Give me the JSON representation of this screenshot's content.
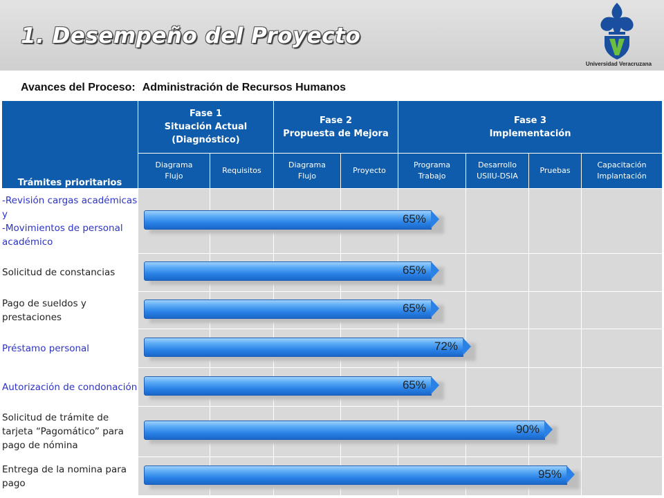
{
  "header": {
    "title": "1. Desempeño del Proyecto",
    "logo_caption": "Universidad Veracruzana"
  },
  "subtitle": {
    "label": "Avances del Proceso:",
    "value": "Administración de Recursos Humanos"
  },
  "table": {
    "first_header": "Trámites prioritarios",
    "phases": [
      {
        "lines": [
          "Fase 1",
          "Situación Actual",
          "(Diagnóstico)"
        ]
      },
      {
        "lines": [
          "Fase 2",
          "Propuesta de Mejora"
        ]
      },
      {
        "lines": [
          "Fase 3",
          "Implementación"
        ]
      }
    ],
    "subcolumns": [
      [
        "Diagrama",
        "Flujo"
      ],
      [
        "Requisitos"
      ],
      [
        "Diagrama",
        "Flujo"
      ],
      [
        "Proyecto"
      ],
      [
        "Programa",
        "Trabajo"
      ],
      [
        "Desarrollo",
        "USIIU-DSIA"
      ],
      [
        "Pruebas"
      ],
      [
        "Capacitación",
        "Implantación"
      ]
    ],
    "rows": [
      {
        "label": "-Revisión cargas académicas y\n-Movimientos de personal académico",
        "progress_label": "65%",
        "progress": 65,
        "blue": true
      },
      {
        "label": "Solicitud de constancias",
        "progress_label": "65%",
        "progress": 65,
        "blue": false
      },
      {
        "label": "Pago de sueldos y prestaciones",
        "progress_label": "65%",
        "progress": 65,
        "blue": false
      },
      {
        "label": "Préstamo personal",
        "progress_label": "72%",
        "progress": 72,
        "blue": true
      },
      {
        "label": "Autorización de condonación",
        "progress_label": "65%",
        "progress": 65,
        "blue": true
      },
      {
        "label": "Solicitud de trámite de tarjeta “Pagomático” para pago de nómina",
        "progress_label": "90%",
        "progress": 90,
        "blue": false
      },
      {
        "label": "Entrega de la nomina para pago",
        "progress_label": "95%",
        "progress": 95,
        "blue": false
      }
    ]
  },
  "colors": {
    "header_blue": "#0e5cab",
    "cell_gray": "#d9d9d9",
    "label_blue": "#2c33c4"
  }
}
